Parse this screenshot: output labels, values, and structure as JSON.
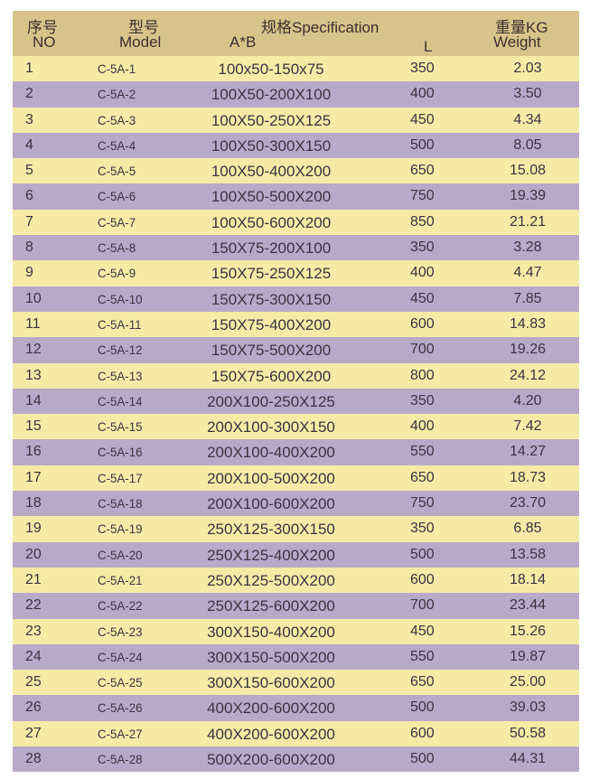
{
  "header": {
    "no_cn": "序号",
    "no_en": "NO",
    "model_cn": "型号",
    "model_en": "Model",
    "spec": "规格Specification",
    "ab": "A*B",
    "l": "L",
    "weight_cn": "重量KG",
    "weight_en": "Weight"
  },
  "colors": {
    "header": "#d8c48a",
    "odd_row": "#f5eba6",
    "even_row": "#b9a9c9"
  },
  "rows": [
    [
      "1",
      "C-5A-1",
      "100x50-150x75",
      "350",
      "2.03"
    ],
    [
      "2",
      "C-5A-2",
      "100X50-200X100",
      "400",
      "3.50"
    ],
    [
      "3",
      "C-5A-3",
      "100X50-250X125",
      "450",
      "4.34"
    ],
    [
      "4",
      "C-5A-4",
      "100X50-300X150",
      "500",
      "8.05"
    ],
    [
      "5",
      "C-5A-5",
      "100X50-400X200",
      "650",
      "15.08"
    ],
    [
      "6",
      "C-5A-6",
      "100X50-500X200",
      "750",
      "19.39"
    ],
    [
      "7",
      "C-5A-7",
      "100X50-600X200",
      "850",
      "21.21"
    ],
    [
      "8",
      "C-5A-8",
      "150X75-200X100",
      "350",
      "3.28"
    ],
    [
      "9",
      "C-5A-9",
      "150X75-250X125",
      "400",
      "4.47"
    ],
    [
      "10",
      "C-5A-10",
      "150X75-300X150",
      "450",
      "7.85"
    ],
    [
      "11",
      "C-5A-11",
      "150X75-400X200",
      "600",
      "14.83"
    ],
    [
      "12",
      "C-5A-12",
      "150X75-500X200",
      "700",
      "19.26"
    ],
    [
      "13",
      "C-5A-13",
      "150X75-600X200",
      "800",
      "24.12"
    ],
    [
      "14",
      "C-5A-14",
      "200X100-250X125",
      "350",
      "4.20"
    ],
    [
      "15",
      "C-5A-15",
      "200X100-300X150",
      "400",
      "7.42"
    ],
    [
      "16",
      "C-5A-16",
      "200X100-400X200",
      "550",
      "14.27"
    ],
    [
      "17",
      "C-5A-17",
      "200X100-500X200",
      "650",
      "18.73"
    ],
    [
      "18",
      "C-5A-18",
      "200X100-600X200",
      "750",
      "23.70"
    ],
    [
      "19",
      "C-5A-19",
      "250X125-300X150",
      "350",
      "6.85"
    ],
    [
      "20",
      "C-5A-20",
      "250X125-400X200",
      "500",
      "13.58"
    ],
    [
      "21",
      "C-5A-21",
      "250X125-500X200",
      "600",
      "18.14"
    ],
    [
      "22",
      "C-5A-22",
      "250X125-600X200",
      "700",
      "23.44"
    ],
    [
      "23",
      "C-5A-23",
      "300X150-400X200",
      "450",
      "15.26"
    ],
    [
      "24",
      "C-5A-24",
      "300X150-500X200",
      "550",
      "19.87"
    ],
    [
      "25",
      "C-5A-25",
      "300X150-600X200",
      "650",
      "25.00"
    ],
    [
      "26",
      "C-5A-26",
      "400X200-600X200",
      "500",
      "39.03"
    ],
    [
      "27",
      "C-5A-27",
      "400X200-600X200",
      "600",
      "50.58"
    ],
    [
      "28",
      "C-5A-28",
      "500X200-600X200",
      "500",
      "44.31"
    ]
  ]
}
